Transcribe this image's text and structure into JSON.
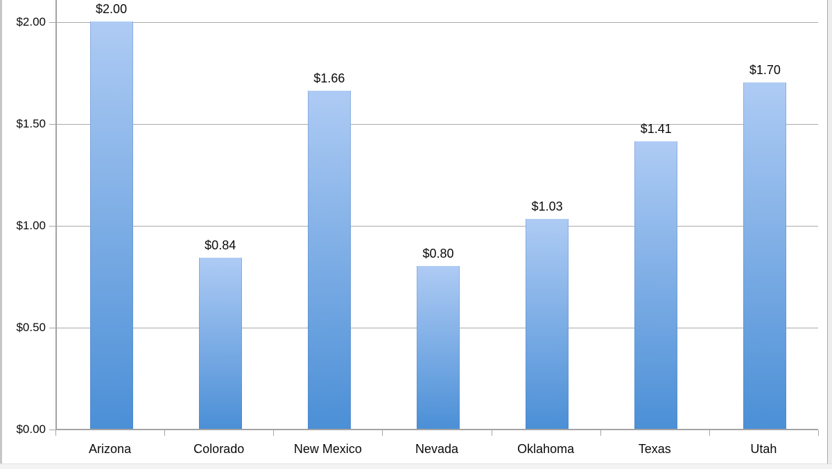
{
  "chart_data": {
    "type": "bar",
    "categories": [
      "Arizona",
      "Colorado",
      "New Mexico",
      "Nevada",
      "Oklahoma",
      "Texas",
      "Utah"
    ],
    "values": [
      2.0,
      0.84,
      1.66,
      0.8,
      1.03,
      1.41,
      1.7
    ],
    "value_labels": [
      "$2.00",
      "$0.84",
      "$1.66",
      "$0.80",
      "$1.03",
      "$1.41",
      "$1.70"
    ],
    "title": "",
    "xlabel": "",
    "ylabel": "",
    "ylim": [
      0,
      2.11
    ],
    "yticks": [
      0,
      0.5,
      1.0,
      1.5,
      2.0
    ],
    "ytick_labels": [
      "$0.00",
      "$0.50",
      "$1.00",
      "$1.50",
      "$2.00"
    ],
    "grid": true,
    "legend": false
  },
  "colors": {
    "bar_top": "#aecbf4",
    "bar_bottom": "#4b8fd6",
    "gridline": "#a9a9a9",
    "axis": "#a3a3a3",
    "text": "#0a0a0a",
    "background": "#ffffff"
  }
}
